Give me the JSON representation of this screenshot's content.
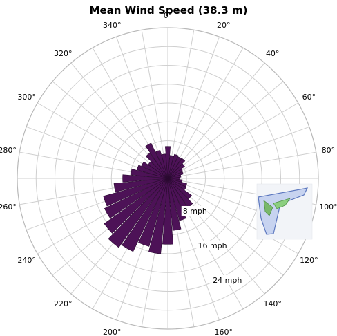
{
  "chart_data": {
    "type": "polar-bar",
    "title": "Mean Wind Speed (38.3 m)",
    "directions": [
      0,
      10,
      20,
      30,
      40,
      50,
      60,
      70,
      80,
      90,
      100,
      110,
      120,
      130,
      140,
      150,
      160,
      170,
      180,
      190,
      200,
      210,
      220,
      230,
      240,
      250,
      260,
      270,
      280,
      290,
      300,
      310,
      320,
      330,
      340,
      350
    ],
    "angle_tick_labels": [
      "0°",
      "20°",
      "40°",
      "60°",
      "80°",
      "100°",
      "120°",
      "140°",
      "160°",
      "180°",
      "200°",
      "220°",
      "240°",
      "260°",
      "280°",
      "300°",
      "320°",
      "340°"
    ],
    "values": [
      6.8,
      4.9,
      5.3,
      5.1,
      5.2,
      4.4,
      3.5,
      3.4,
      2.8,
      2.6,
      3.1,
      4.2,
      4.3,
      6.2,
      7.5,
      8.3,
      9.3,
      11.1,
      14.0,
      16.1,
      15.0,
      17.2,
      18.0,
      16.6,
      14.9,
      14.2,
      11.5,
      9.6,
      7.9,
      6.8,
      6.2,
      5.1,
      6.6,
      8.3,
      6.2,
      5.2
    ],
    "radial_ticks": [
      8,
      16,
      24
    ],
    "radial_tick_labels": [
      "8 mph",
      "16 mph",
      "24 mph"
    ],
    "radial_max": 32,
    "colors": {
      "bar": "#4d1257",
      "grid": "#cfcfcf",
      "inset": "#6a86c7"
    },
    "inset_icon": "wind-turbine-map-icon"
  }
}
